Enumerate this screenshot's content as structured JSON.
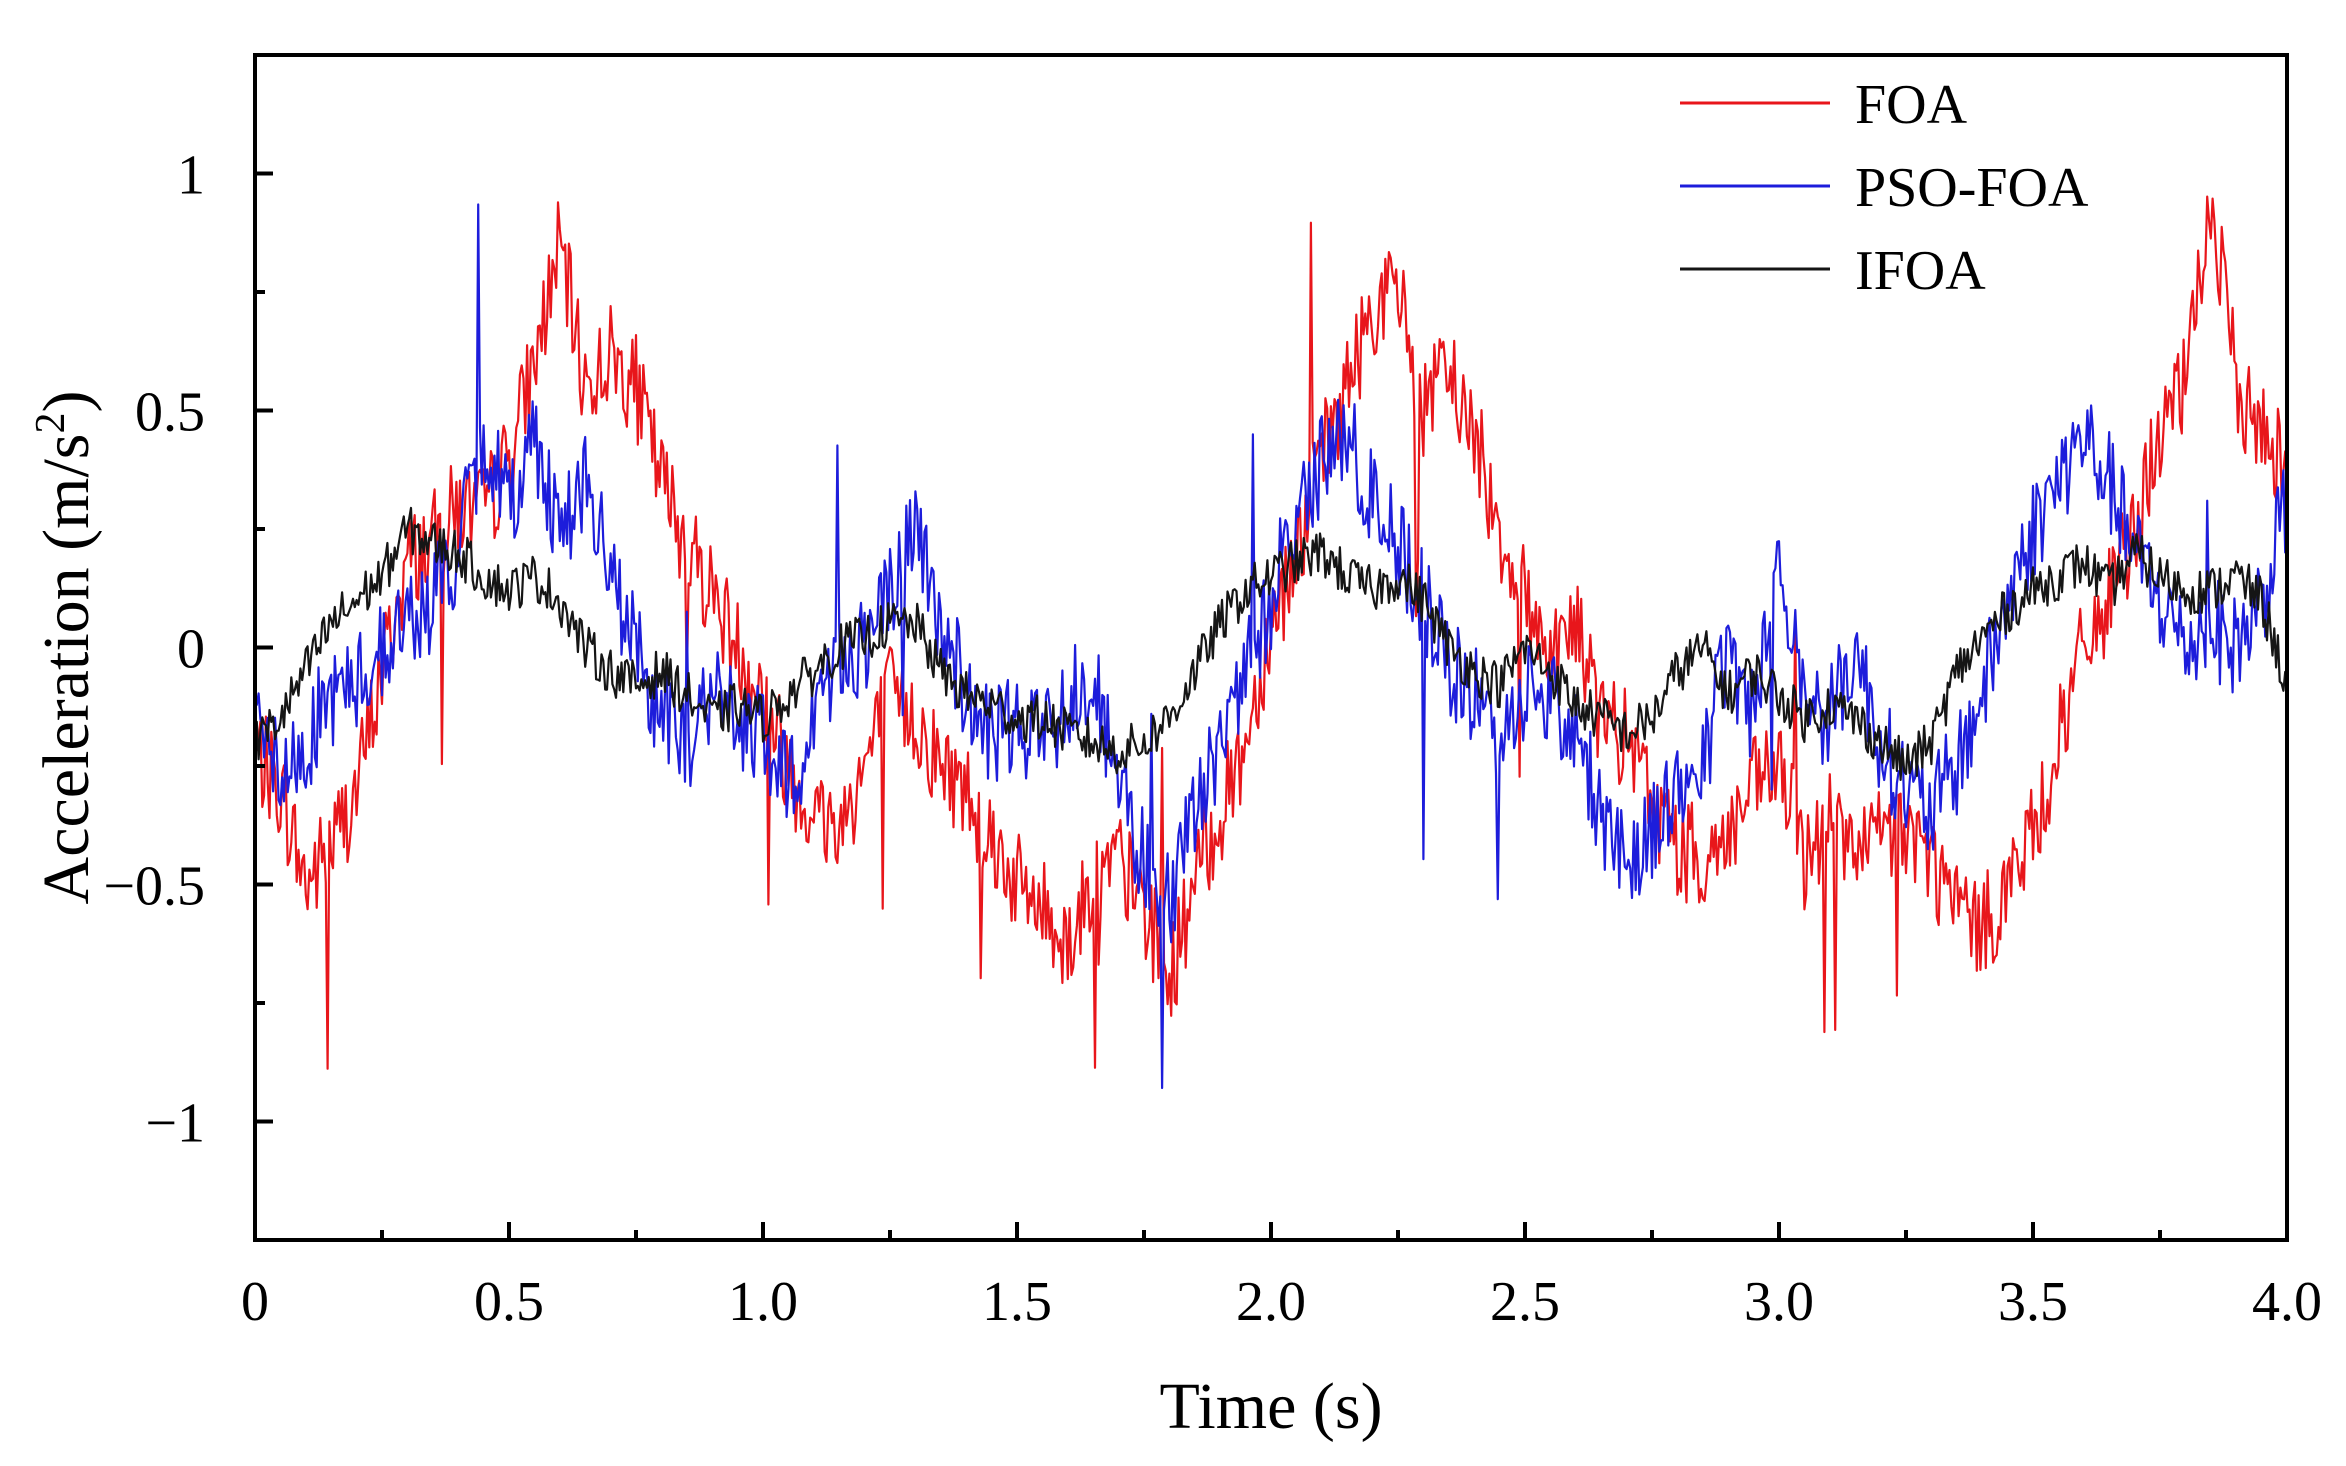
{
  "chart_data": {
    "type": "line",
    "xlabel": "Time (s)",
    "ylabel_main": "Acceleration (m/s",
    "ylabel_sup": "2",
    "ylabel_tail": ")",
    "xlim": [
      0,
      4.0
    ],
    "ylim": [
      -1.25,
      1.25
    ],
    "grid": false,
    "legend_position": "top-right",
    "x_ticks": [
      {
        "value": 0,
        "label": "0"
      },
      {
        "value": 0.5,
        "label": "0.5"
      },
      {
        "value": 1.0,
        "label": "1.0"
      },
      {
        "value": 1.5,
        "label": "1.5"
      },
      {
        "value": 2.0,
        "label": "2.0"
      },
      {
        "value": 2.5,
        "label": "2.5"
      },
      {
        "value": 3.0,
        "label": "3.0"
      },
      {
        "value": 3.5,
        "label": "3.5"
      },
      {
        "value": 4.0,
        "label": "4.0"
      }
    ],
    "y_ticks": [
      {
        "value": 1,
        "label": "1"
      },
      {
        "value": 0.5,
        "label": "0.5"
      },
      {
        "value": 0,
        "label": "0"
      },
      {
        "value": -0.5,
        "label": "−0.5"
      },
      {
        "value": -1,
        "label": "−1"
      }
    ],
    "series": [
      {
        "name": "FOA",
        "color": "#e8161b",
        "x": [
          0,
          0.05,
          0.1,
          0.15,
          0.2,
          0.25,
          0.3,
          0.35,
          0.4,
          0.45,
          0.5,
          0.55,
          0.6,
          0.65,
          0.7,
          0.75,
          0.8,
          0.85,
          0.9,
          0.95,
          1.0,
          1.05,
          1.1,
          1.15,
          1.2,
          1.25,
          1.3,
          1.35,
          1.4,
          1.45,
          1.5,
          1.55,
          1.6,
          1.65,
          1.7,
          1.75,
          1.8,
          1.85,
          1.9,
          1.95,
          2.0,
          2.05,
          2.1,
          2.15,
          2.2,
          2.25,
          2.3,
          2.35,
          2.4,
          2.45,
          2.5,
          2.55,
          2.6,
          2.65,
          2.7,
          2.75,
          2.8,
          2.85,
          2.9,
          2.95,
          3.0,
          3.05,
          3.1,
          3.15,
          3.2,
          3.25,
          3.3,
          3.35,
          3.4,
          3.45,
          3.5,
          3.55,
          3.6,
          3.65,
          3.7,
          3.75,
          3.8,
          3.85,
          3.9,
          3.95,
          4.0
        ],
        "y": [
          -0.22,
          -0.3,
          -0.5,
          -0.42,
          -0.3,
          -0.05,
          0.18,
          0.22,
          0.3,
          0.28,
          0.4,
          0.6,
          0.85,
          0.55,
          0.62,
          0.55,
          0.35,
          0.22,
          0.12,
          0.0,
          -0.1,
          -0.25,
          -0.35,
          -0.38,
          -0.25,
          -0.1,
          -0.15,
          -0.25,
          -0.3,
          -0.4,
          -0.5,
          -0.55,
          -0.62,
          -0.5,
          -0.45,
          -0.55,
          -0.7,
          -0.5,
          -0.35,
          -0.2,
          0.05,
          0.2,
          0.4,
          0.55,
          0.72,
          0.75,
          0.5,
          0.58,
          0.45,
          0.25,
          0.1,
          0.0,
          0.05,
          -0.15,
          -0.2,
          -0.32,
          -0.42,
          -0.45,
          -0.4,
          -0.3,
          -0.25,
          -0.45,
          -0.35,
          -0.45,
          -0.4,
          -0.38,
          -0.45,
          -0.55,
          -0.6,
          -0.5,
          -0.4,
          -0.2,
          0.0,
          0.1,
          0.25,
          0.45,
          0.55,
          0.95,
          0.55,
          0.45,
          0.4
        ]
      },
      {
        "name": "PSO-FOA",
        "color": "#1d1ddb",
        "x": [
          0,
          0.05,
          0.1,
          0.15,
          0.2,
          0.25,
          0.3,
          0.35,
          0.4,
          0.45,
          0.5,
          0.55,
          0.6,
          0.65,
          0.7,
          0.75,
          0.8,
          0.85,
          0.9,
          0.95,
          1.0,
          1.05,
          1.1,
          1.15,
          1.2,
          1.25,
          1.3,
          1.35,
          1.4,
          1.45,
          1.5,
          1.55,
          1.6,
          1.65,
          1.7,
          1.75,
          1.8,
          1.85,
          1.9,
          1.95,
          2.0,
          2.05,
          2.1,
          2.15,
          2.2,
          2.25,
          2.3,
          2.35,
          2.4,
          2.45,
          2.5,
          2.55,
          2.6,
          2.65,
          2.7,
          2.75,
          2.8,
          2.85,
          2.9,
          2.95,
          3.0,
          3.05,
          3.1,
          3.15,
          3.2,
          3.25,
          3.3,
          3.35,
          3.4,
          3.45,
          3.5,
          3.55,
          3.6,
          3.65,
          3.7,
          3.75,
          3.8,
          3.85,
          3.9,
          3.95,
          4.0
        ],
        "y": [
          -0.05,
          -0.3,
          -0.2,
          -0.1,
          -0.08,
          0.0,
          0.05,
          0.1,
          0.2,
          0.45,
          0.3,
          0.45,
          0.25,
          0.35,
          0.15,
          0.0,
          -0.15,
          -0.2,
          -0.1,
          -0.15,
          -0.2,
          -0.3,
          -0.15,
          0.0,
          0.0,
          0.1,
          0.25,
          0.05,
          -0.1,
          -0.2,
          -0.15,
          -0.2,
          -0.1,
          -0.05,
          -0.3,
          -0.45,
          -0.55,
          -0.35,
          -0.2,
          -0.05,
          0.1,
          0.3,
          0.38,
          0.45,
          0.3,
          0.22,
          0.1,
          -0.05,
          -0.1,
          -0.2,
          -0.08,
          -0.1,
          -0.2,
          -0.35,
          -0.45,
          -0.38,
          -0.3,
          -0.25,
          0.0,
          -0.15,
          0.2,
          -0.1,
          -0.15,
          0.0,
          -0.2,
          -0.3,
          -0.35,
          -0.25,
          -0.1,
          0.1,
          0.25,
          0.35,
          0.45,
          0.35,
          0.2,
          0.1,
          0.0,
          0.05,
          0.0,
          0.1,
          0.3
        ]
      },
      {
        "name": "IFOA",
        "color": "#151515",
        "x": [
          0,
          0.05,
          0.1,
          0.15,
          0.2,
          0.25,
          0.3,
          0.35,
          0.4,
          0.45,
          0.5,
          0.55,
          0.6,
          0.65,
          0.7,
          0.75,
          0.8,
          0.85,
          0.9,
          0.95,
          1.0,
          1.05,
          1.1,
          1.15,
          1.2,
          1.25,
          1.3,
          1.35,
          1.4,
          1.45,
          1.5,
          1.55,
          1.6,
          1.65,
          1.7,
          1.75,
          1.8,
          1.85,
          1.9,
          1.95,
          2.0,
          2.05,
          2.1,
          2.15,
          2.2,
          2.25,
          2.3,
          2.35,
          2.4,
          2.45,
          2.5,
          2.55,
          2.6,
          2.65,
          2.7,
          2.75,
          2.8,
          2.85,
          2.9,
          2.95,
          3.0,
          3.05,
          3.1,
          3.15,
          3.2,
          3.25,
          3.3,
          3.35,
          3.4,
          3.45,
          3.5,
          3.55,
          3.6,
          3.65,
          3.7,
          3.75,
          3.8,
          3.85,
          3.9,
          3.95,
          4.0
        ],
        "y": [
          -0.2,
          -0.15,
          -0.05,
          0.05,
          0.1,
          0.15,
          0.25,
          0.22,
          0.2,
          0.15,
          0.12,
          0.15,
          0.1,
          0.0,
          -0.05,
          -0.08,
          -0.05,
          -0.1,
          -0.15,
          -0.12,
          -0.15,
          -0.1,
          -0.05,
          0.0,
          0.02,
          0.05,
          0.05,
          -0.05,
          -0.1,
          -0.12,
          -0.15,
          -0.15,
          -0.18,
          -0.2,
          -0.22,
          -0.2,
          -0.15,
          -0.05,
          0.05,
          0.12,
          0.15,
          0.18,
          0.2,
          0.15,
          0.12,
          0.15,
          0.1,
          0.0,
          -0.05,
          -0.08,
          0.0,
          -0.05,
          -0.12,
          -0.15,
          -0.18,
          -0.15,
          -0.05,
          0.0,
          -0.1,
          -0.05,
          -0.1,
          -0.15,
          -0.12,
          -0.15,
          -0.2,
          -0.25,
          -0.2,
          -0.05,
          0.02,
          0.08,
          0.12,
          0.15,
          0.18,
          0.12,
          0.2,
          0.15,
          0.12,
          0.12,
          0.15,
          0.1,
          -0.08
        ]
      }
    ]
  }
}
